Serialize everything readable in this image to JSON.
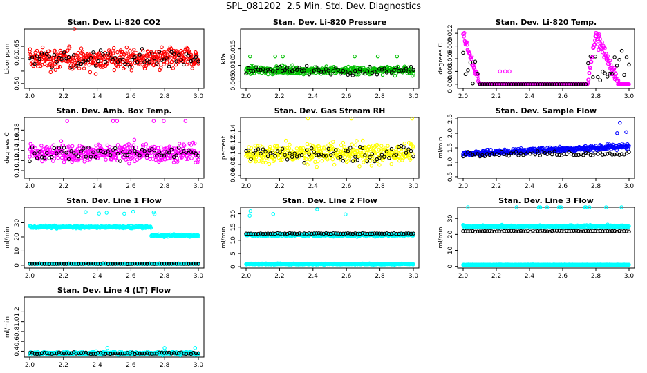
{
  "main_title": "SPL_081202  2.5 Min. Std. Dev. Diagnostics",
  "chart_data": [
    {
      "type": "scatter",
      "title": "Stan. Dev. Li-820 CO2",
      "ylabel": "Licor ppm",
      "xlim": [
        2.0,
        3.0
      ],
      "ylim": [
        0.48,
        0.72
      ],
      "xticks": [
        2.0,
        2.2,
        2.4,
        2.6,
        2.8,
        3.0
      ],
      "yticks": [
        0.5,
        0.55,
        0.6,
        0.65
      ],
      "ytick_labels": [
        "0.50",
        "",
        "0.60",
        "0.65"
      ],
      "series": [
        {
          "color": "#ff0000",
          "base": 0.6,
          "spread": 0.045,
          "gen": "noise"
        }
      ],
      "overlay": {
        "color": "#000000",
        "base": 0.6,
        "spread": 0.04
      }
    },
    {
      "type": "scatter",
      "title": "Stan. Dev. Li-820 Pressure",
      "ylabel": "kPa",
      "xlim": [
        2.0,
        3.0
      ],
      "ylim": [
        0.003,
        0.021
      ],
      "xticks": [
        2.0,
        2.2,
        2.4,
        2.6,
        2.8,
        3.0
      ],
      "yticks": [
        0.005,
        0.01,
        0.015
      ],
      "ytick_labels": [
        "0.005",
        "0.010",
        "0.015"
      ],
      "series": [
        {
          "color": "#00c000",
          "base": 0.0085,
          "spread": 0.0012,
          "gen": "noise"
        }
      ],
      "overlay": {
        "color": "#000000",
        "base": 0.0085,
        "spread": 0.0012
      }
    },
    {
      "type": "scatter",
      "title": "Stan. Dev. Li-820 Temp.",
      "ylabel": "degrees C",
      "xlim": [
        2.0,
        3.0
      ],
      "ylim": [
        -0.001,
        0.013
      ],
      "xticks": [
        2.0,
        2.2,
        2.4,
        2.6,
        2.8,
        3.0
      ],
      "yticks": [
        0.0,
        0.003,
        0.006,
        0.009,
        0.012
      ],
      "ytick_labels": [
        "0.000",
        "0.003",
        "0.006",
        "0.009",
        "0.012"
      ],
      "series": [
        {
          "color": "#ff00ff",
          "base": 0.0,
          "spread": 0.0,
          "gen": "temp"
        }
      ],
      "overlay": {
        "color": "#000000",
        "base": 0.0,
        "spread": 0.0
      }
    },
    {
      "type": "scatter",
      "title": "Stan. Dev. Amb. Box Temp.",
      "ylabel": "degrees C",
      "xlim": [
        2.0,
        3.0
      ],
      "ylim": [
        0.085,
        0.205
      ],
      "xticks": [
        2.0,
        2.2,
        2.4,
        2.6,
        2.8,
        3.0
      ],
      "yticks": [
        0.1,
        0.12,
        0.14,
        0.16,
        0.18
      ],
      "ytick_labels": [
        "0.10",
        "0.12",
        "0.14",
        "0.16",
        "0.18"
      ],
      "series": [
        {
          "color": "#ff00ff",
          "base": 0.135,
          "spread": 0.018,
          "gen": "noise"
        }
      ],
      "overlay": {
        "color": "#000000",
        "base": 0.135,
        "spread": 0.015
      }
    },
    {
      "type": "scatter",
      "title": "Stan. Dev. Gas Stream RH",
      "ylabel": "percent",
      "xlim": [
        2.0,
        3.0
      ],
      "ylim": [
        0.055,
        0.165
      ],
      "xticks": [
        2.0,
        2.2,
        2.4,
        2.6,
        2.8,
        3.0
      ],
      "yticks": [
        0.06,
        0.08,
        0.1,
        0.12,
        0.14
      ],
      "ytick_labels": [
        "0.06",
        "0.08",
        "0.10",
        "0.12",
        "0.14"
      ],
      "series": [
        {
          "color": "#ffff00",
          "base": 0.1,
          "spread": 0.018,
          "gen": "noise"
        }
      ],
      "overlay": {
        "color": "#000000",
        "base": 0.1,
        "spread": 0.016
      }
    },
    {
      "type": "scatter",
      "title": "Stan. Dev. Sample Flow",
      "ylabel": "ml/min",
      "xlim": [
        2.0,
        3.0
      ],
      "ylim": [
        0.45,
        2.55
      ],
      "xticks": [
        2.0,
        2.2,
        2.4,
        2.6,
        2.8,
        3.0
      ],
      "yticks": [
        0.5,
        1.0,
        1.5,
        2.0,
        2.5
      ],
      "ytick_labels": [
        "0.5",
        "1.0",
        "1.5",
        "2.0",
        "2.5"
      ],
      "series": [
        {
          "color": "#0000ff",
          "base": 1.3,
          "spread": 0.1,
          "gen": "rising"
        }
      ],
      "overlay": {
        "color": "#000000",
        "base": 1.3,
        "spread": 0.08
      }
    },
    {
      "type": "scatter",
      "title": "Stan. Dev. Line 1 Flow",
      "ylabel": "ml/min",
      "xlim": [
        2.0,
        3.0
      ],
      "ylim": [
        -2,
        41
      ],
      "xticks": [
        2.0,
        2.2,
        2.4,
        2.6,
        2.8,
        3.0
      ],
      "yticks": [
        0,
        10,
        20,
        30
      ],
      "ytick_labels": [
        "0",
        "10",
        "20",
        "30"
      ],
      "series": [
        {
          "color": "#00ffff",
          "base": 27,
          "spread": 0.9,
          "gen": "line1"
        }
      ],
      "overlay": {
        "color": "#000000",
        "base": 1,
        "spread": 0.2
      }
    },
    {
      "type": "scatter",
      "title": "Stan. Dev. Line 2 Flow",
      "ylabel": "ml/min",
      "xlim": [
        2.0,
        3.0
      ],
      "ylim": [
        -0.5,
        22.5
      ],
      "xticks": [
        2.0,
        2.2,
        2.4,
        2.6,
        2.8,
        3.0
      ],
      "yticks": [
        0,
        5,
        10,
        15,
        20
      ],
      "ytick_labels": [
        "0",
        "5",
        "10",
        "15",
        "20"
      ],
      "series": [
        {
          "color": "#00ffff",
          "base": 12,
          "spread": 0.5,
          "gen": "line23"
        }
      ],
      "overlay": {
        "color": "#000000",
        "base": 12.5,
        "spread": 0.2
      }
    },
    {
      "type": "scatter",
      "title": "Stan. Dev. Line 3 Flow",
      "ylabel": "ml/min",
      "xlim": [
        2.0,
        3.0
      ],
      "ylim": [
        -1,
        37
      ],
      "xticks": [
        2.0,
        2.2,
        2.4,
        2.6,
        2.8,
        3.0
      ],
      "yticks": [
        0,
        10,
        20,
        30
      ],
      "ytick_labels": [
        "0",
        "10",
        "20",
        "30"
      ],
      "series": [
        {
          "color": "#00ffff",
          "base": 25,
          "spread": 0.7,
          "gen": "line23"
        }
      ],
      "overlay": {
        "color": "#000000",
        "base": 22,
        "spread": 0.3
      }
    },
    {
      "type": "scatter",
      "title": "Stan. Dev. Line 4 (LT) Flow",
      "ylabel": "ml/min",
      "xlim": [
        2.0,
        3.0
      ],
      "ylim": [
        0.28,
        1.5
      ],
      "xticks": [
        2.0,
        2.2,
        2.4,
        2.6,
        2.8,
        3.0
      ],
      "yticks": [
        0.4,
        0.6,
        0.8,
        1.0,
        1.2
      ],
      "ytick_labels": [
        "0.4",
        "0.6",
        "0.8",
        "1.0",
        "1.2"
      ],
      "series": [
        {
          "color": "#00ffff",
          "base": 0.36,
          "spread": 0.03,
          "gen": "noise"
        }
      ],
      "overlay": {
        "color": "#000000",
        "base": 0.36,
        "spread": 0.02
      }
    }
  ]
}
